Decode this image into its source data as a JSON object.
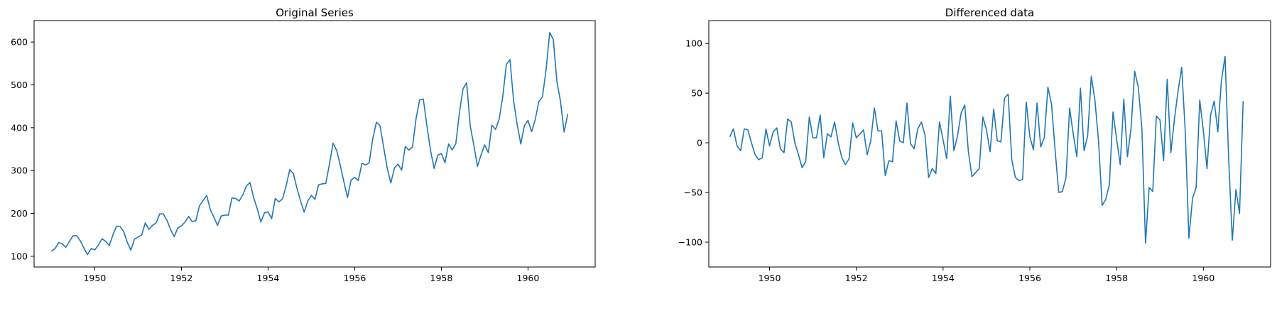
{
  "chart_data": [
    {
      "type": "line",
      "title": "Original Series",
      "xlabel": "",
      "ylabel": "",
      "x_start": "1949-01",
      "x_step": "month",
      "xlim": [
        1948.6,
        1961.55
      ],
      "ylim": [
        75,
        650
      ],
      "xticks": [
        1950,
        1952,
        1954,
        1956,
        1958,
        1960
      ],
      "yticks": [
        100,
        200,
        300,
        400,
        500,
        600
      ],
      "grid": false,
      "color": "#1f77b4",
      "series": [
        {
          "values": [
            112,
            118,
            132,
            129,
            121,
            135,
            148,
            148,
            136,
            119,
            104,
            118,
            115,
            126,
            141,
            135,
            125,
            149,
            170,
            170,
            158,
            133,
            114,
            140,
            145,
            150,
            178,
            163,
            172,
            178,
            199,
            199,
            184,
            162,
            146,
            166,
            171,
            180,
            193,
            181,
            183,
            218,
            230,
            242,
            209,
            191,
            172,
            194,
            196,
            196,
            236,
            235,
            229,
            243,
            264,
            272,
            237,
            211,
            180,
            201,
            204,
            188,
            235,
            227,
            234,
            264,
            302,
            293,
            259,
            229,
            203,
            229,
            242,
            233,
            267,
            269,
            270,
            315,
            364,
            347,
            312,
            274,
            237,
            278,
            284,
            277,
            317,
            313,
            318,
            374,
            413,
            405,
            355,
            306,
            271,
            306,
            315,
            301,
            356,
            348,
            355,
            422,
            465,
            467,
            404,
            347,
            305,
            336,
            340,
            318,
            362,
            348,
            363,
            435,
            491,
            505,
            404,
            359,
            310,
            337,
            360,
            342,
            406,
            396,
            420,
            472,
            548,
            559,
            463,
            407,
            362,
            405,
            417,
            391,
            419,
            461,
            472,
            535,
            622,
            606,
            508,
            461,
            390,
            432
          ]
        }
      ]
    },
    {
      "type": "line",
      "title": "Differenced data",
      "xlabel": "",
      "ylabel": "",
      "x_start": "1949-02",
      "x_step": "month",
      "xlim": [
        1948.6,
        1961.55
      ],
      "ylim": [
        -125,
        123
      ],
      "xticks": [
        1950,
        1952,
        1954,
        1956,
        1958,
        1960
      ],
      "yticks": [
        -100,
        -50,
        0,
        50,
        100
      ],
      "grid": false,
      "color": "#1f77b4",
      "series": [
        {
          "values": [
            6,
            14,
            -3,
            -8,
            14,
            13,
            0,
            -12,
            -17,
            -15,
            14,
            -3,
            11,
            15,
            -6,
            -10,
            24,
            21,
            0,
            -12,
            -25,
            -19,
            26,
            5,
            5,
            28,
            -15,
            9,
            6,
            21,
            0,
            -15,
            -22,
            -16,
            20,
            5,
            9,
            13,
            -12,
            2,
            35,
            12,
            12,
            -33,
            -18,
            -19,
            22,
            2,
            0,
            40,
            -1,
            -6,
            14,
            21,
            8,
            -35,
            -26,
            -31,
            21,
            3,
            -16,
            47,
            -8,
            7,
            30,
            38,
            -9,
            -34,
            -30,
            -26,
            26,
            13,
            -9,
            34,
            2,
            1,
            45,
            49,
            -17,
            -35,
            -38,
            -37,
            41,
            6,
            -7,
            40,
            -4,
            5,
            56,
            39,
            -8,
            -50,
            -49,
            -35,
            35,
            9,
            -14,
            55,
            -8,
            7,
            67,
            43,
            2,
            -63,
            -57,
            -42,
            31,
            4,
            -22,
            44,
            -14,
            15,
            72,
            56,
            14,
            -101,
            -45,
            -49,
            27,
            23,
            -18,
            64,
            -10,
            24,
            52,
            76,
            11,
            -96,
            -56,
            -45,
            43,
            12,
            -26,
            28,
            42,
            11,
            63,
            87,
            -16,
            -98,
            -47,
            -71,
            42
          ]
        }
      ]
    }
  ]
}
